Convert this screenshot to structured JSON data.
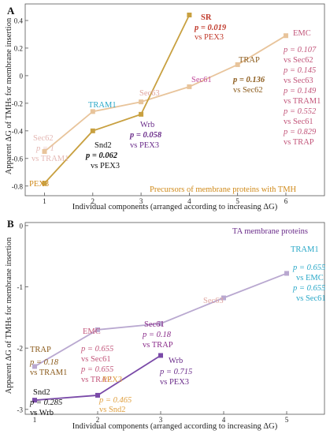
{
  "chart_data": [
    {
      "panel_label": "A",
      "type": "line",
      "xlabel": "Individual components (arranged according to increasing ΔG)",
      "ylabel": "Apparent ΔG of TMHs for membrane insertion",
      "xlim": [
        0.6,
        6.8
      ],
      "ylim": [
        -0.87,
        0.52
      ],
      "x_ticks": [
        1,
        2,
        3,
        4,
        5,
        6
      ],
      "y_ticks": [
        "0.4",
        "0.2",
        "0",
        "-0.2",
        "-0.4",
        "-0.6",
        "-0.8"
      ],
      "y_tick_values": [
        0.4,
        0.2,
        0,
        -0.2,
        -0.4,
        -0.6,
        -0.8
      ],
      "series": [
        {
          "color": "#e8c49b",
          "points": [
            {
              "x": 1,
              "y": -0.55,
              "name": "Sec62"
            },
            {
              "x": 2,
              "y": -0.26,
              "name": "TRAM1"
            },
            {
              "x": 3,
              "y": -0.19,
              "name": "Sec63"
            },
            {
              "x": 4,
              "y": -0.08,
              "name": "Sec61"
            },
            {
              "x": 5,
              "y": 0.08,
              "name": "TRAP"
            },
            {
              "x": 6,
              "y": 0.29,
              "name": "EMC"
            }
          ]
        },
        {
          "color": "#c8a040",
          "points": [
            {
              "x": 1,
              "y": -0.78,
              "name": "PEX3"
            },
            {
              "x": 2,
              "y": -0.4,
              "name": "Snd2"
            },
            {
              "x": 3,
              "y": -0.28,
              "name": "Wrb"
            },
            {
              "x": 4,
              "y": 0.44,
              "name": "SR"
            }
          ]
        }
      ],
      "annotations": [
        {
          "text": "SR",
          "color": "#c0392b"
        },
        {
          "text": "p = 0.019",
          "color": "#c0392b"
        },
        {
          "text": "vs PEX3",
          "color": "#c0392b"
        },
        {
          "text": "EMC",
          "color": "#c2557a"
        },
        {
          "text": "p = 0.107",
          "color": "#c2557a"
        },
        {
          "text": "vs Sec62",
          "color": "#c2557a"
        },
        {
          "text": "p = 0.145",
          "color": "#c2557a"
        },
        {
          "text": "vs Sec63",
          "color": "#c2557a"
        },
        {
          "text": "p = 0.149",
          "color": "#c2557a"
        },
        {
          "text": "vs TRAM1",
          "color": "#c2557a"
        },
        {
          "text": "p = 0.552",
          "color": "#c2557a"
        },
        {
          "text": "vs Sec61",
          "color": "#c2557a"
        },
        {
          "text": "p = 0.829",
          "color": "#c2557a"
        },
        {
          "text": "vs TRAP",
          "color": "#c2557a"
        },
        {
          "text": "TRAP",
          "color": "#8b5a1a"
        },
        {
          "text": "p = 0.136",
          "color": "#8b5a1a"
        },
        {
          "text": "vs Sec62",
          "color": "#8b5a1a"
        },
        {
          "text": "Sec61",
          "color": "#c04a9a"
        },
        {
          "text": "Sec63",
          "color": "#e0a6a0"
        },
        {
          "text": "TRAM1",
          "color": "#2aa8c8"
        },
        {
          "text": "Wrb",
          "color": "#6a2c8a"
        },
        {
          "text": "p = 0.058",
          "color": "#6a2c8a"
        },
        {
          "text": "vs PEX3",
          "color": "#6a2c8a"
        },
        {
          "text": "Snd2",
          "color": "#111111"
        },
        {
          "text": "p = 0.062",
          "color": "#111111"
        },
        {
          "text": "vs PEX3",
          "color": "#111111"
        },
        {
          "text": "Sec62",
          "color": "#e4b8b4"
        },
        {
          "text": "p = 1",
          "color": "#e4b8b4"
        },
        {
          "text": "vs TRAM1",
          "color": "#e4b8b4"
        },
        {
          "text": "PEX3",
          "color": "#d08a1a"
        },
        {
          "text": "Precursors of membrane proteins with TMH",
          "color": "#d08a1a"
        }
      ]
    },
    {
      "panel_label": "B",
      "type": "line",
      "xlabel": "Individual components (arranged according to increasing ΔG)",
      "ylabel": "Apparent ΔG of TMHs for membrane insertion",
      "xlim": [
        0.85,
        5.6
      ],
      "ylim": [
        -3.08,
        0.05
      ],
      "x_ticks": [
        1,
        2,
        3,
        4,
        5
      ],
      "y_ticks": [
        "0",
        "-1",
        "-2",
        "-3"
      ],
      "y_tick_values": [
        0,
        -1,
        -2,
        -3
      ],
      "series": [
        {
          "color": "#b9a8d0",
          "points": [
            {
              "x": 1,
              "y": -2.3,
              "name": "TRAP"
            },
            {
              "x": 2,
              "y": -1.7,
              "name": "EMC"
            },
            {
              "x": 3,
              "y": -1.6,
              "name": "Sec61"
            },
            {
              "x": 4,
              "y": -1.18,
              "name": "Sec63"
            },
            {
              "x": 5,
              "y": -0.78,
              "name": "TRAM1"
            }
          ]
        },
        {
          "color": "#7a4aa8",
          "points": [
            {
              "x": 1,
              "y": -2.85,
              "name": "Snd2"
            },
            {
              "x": 2,
              "y": -2.77,
              "name": "PEX3"
            },
            {
              "x": 3,
              "y": -2.12,
              "name": "Wrb"
            }
          ]
        }
      ],
      "annotations": [
        {
          "text": "TA membrane proteins",
          "color": "#6a2c8a"
        },
        {
          "text": "TRAM1",
          "color": "#2aa8c8"
        },
        {
          "text": "p = 0.655",
          "color": "#2aa8c8"
        },
        {
          "text": "vs EMC",
          "color": "#2aa8c8"
        },
        {
          "text": "p = 0.655",
          "color": "#2aa8c8"
        },
        {
          "text": "vs Sec61",
          "color": "#2aa8c8"
        },
        {
          "text": "Sec63",
          "color": "#e0a6a0"
        },
        {
          "text": "Sec61",
          "color": "#8a2c8a"
        },
        {
          "text": "p = 0.18",
          "color": "#8a2c8a"
        },
        {
          "text": "vs TRAP",
          "color": "#8a2c8a"
        },
        {
          "text": "EMC",
          "color": "#c2557a"
        },
        {
          "text": "p = 0.655",
          "color": "#c2557a"
        },
        {
          "text": "vs Sec61",
          "color": "#c2557a"
        },
        {
          "text": "p = 0.655",
          "color": "#c2557a"
        },
        {
          "text": "vs TRAP",
          "color": "#c2557a"
        },
        {
          "text": "TRAP",
          "color": "#8b5a1a"
        },
        {
          "text": "p = 0.18",
          "color": "#8b5a1a"
        },
        {
          "text": "vs TRAM1",
          "color": "#8b5a1a"
        },
        {
          "text": "Wrb",
          "color": "#6a2c8a"
        },
        {
          "text": "p = 0.715",
          "color": "#6a2c8a"
        },
        {
          "text": "vs PEX3",
          "color": "#6a2c8a"
        },
        {
          "text": "PEX3",
          "color": "#e0a040"
        },
        {
          "text": "p = 0.465",
          "color": "#e0a040"
        },
        {
          "text": "vs Snd2",
          "color": "#e0a040"
        },
        {
          "text": "Snd2",
          "color": "#111111"
        },
        {
          "text": "p = 0.285",
          "color": "#111111"
        },
        {
          "text": "vs Wrb",
          "color": "#111111"
        }
      ]
    }
  ]
}
